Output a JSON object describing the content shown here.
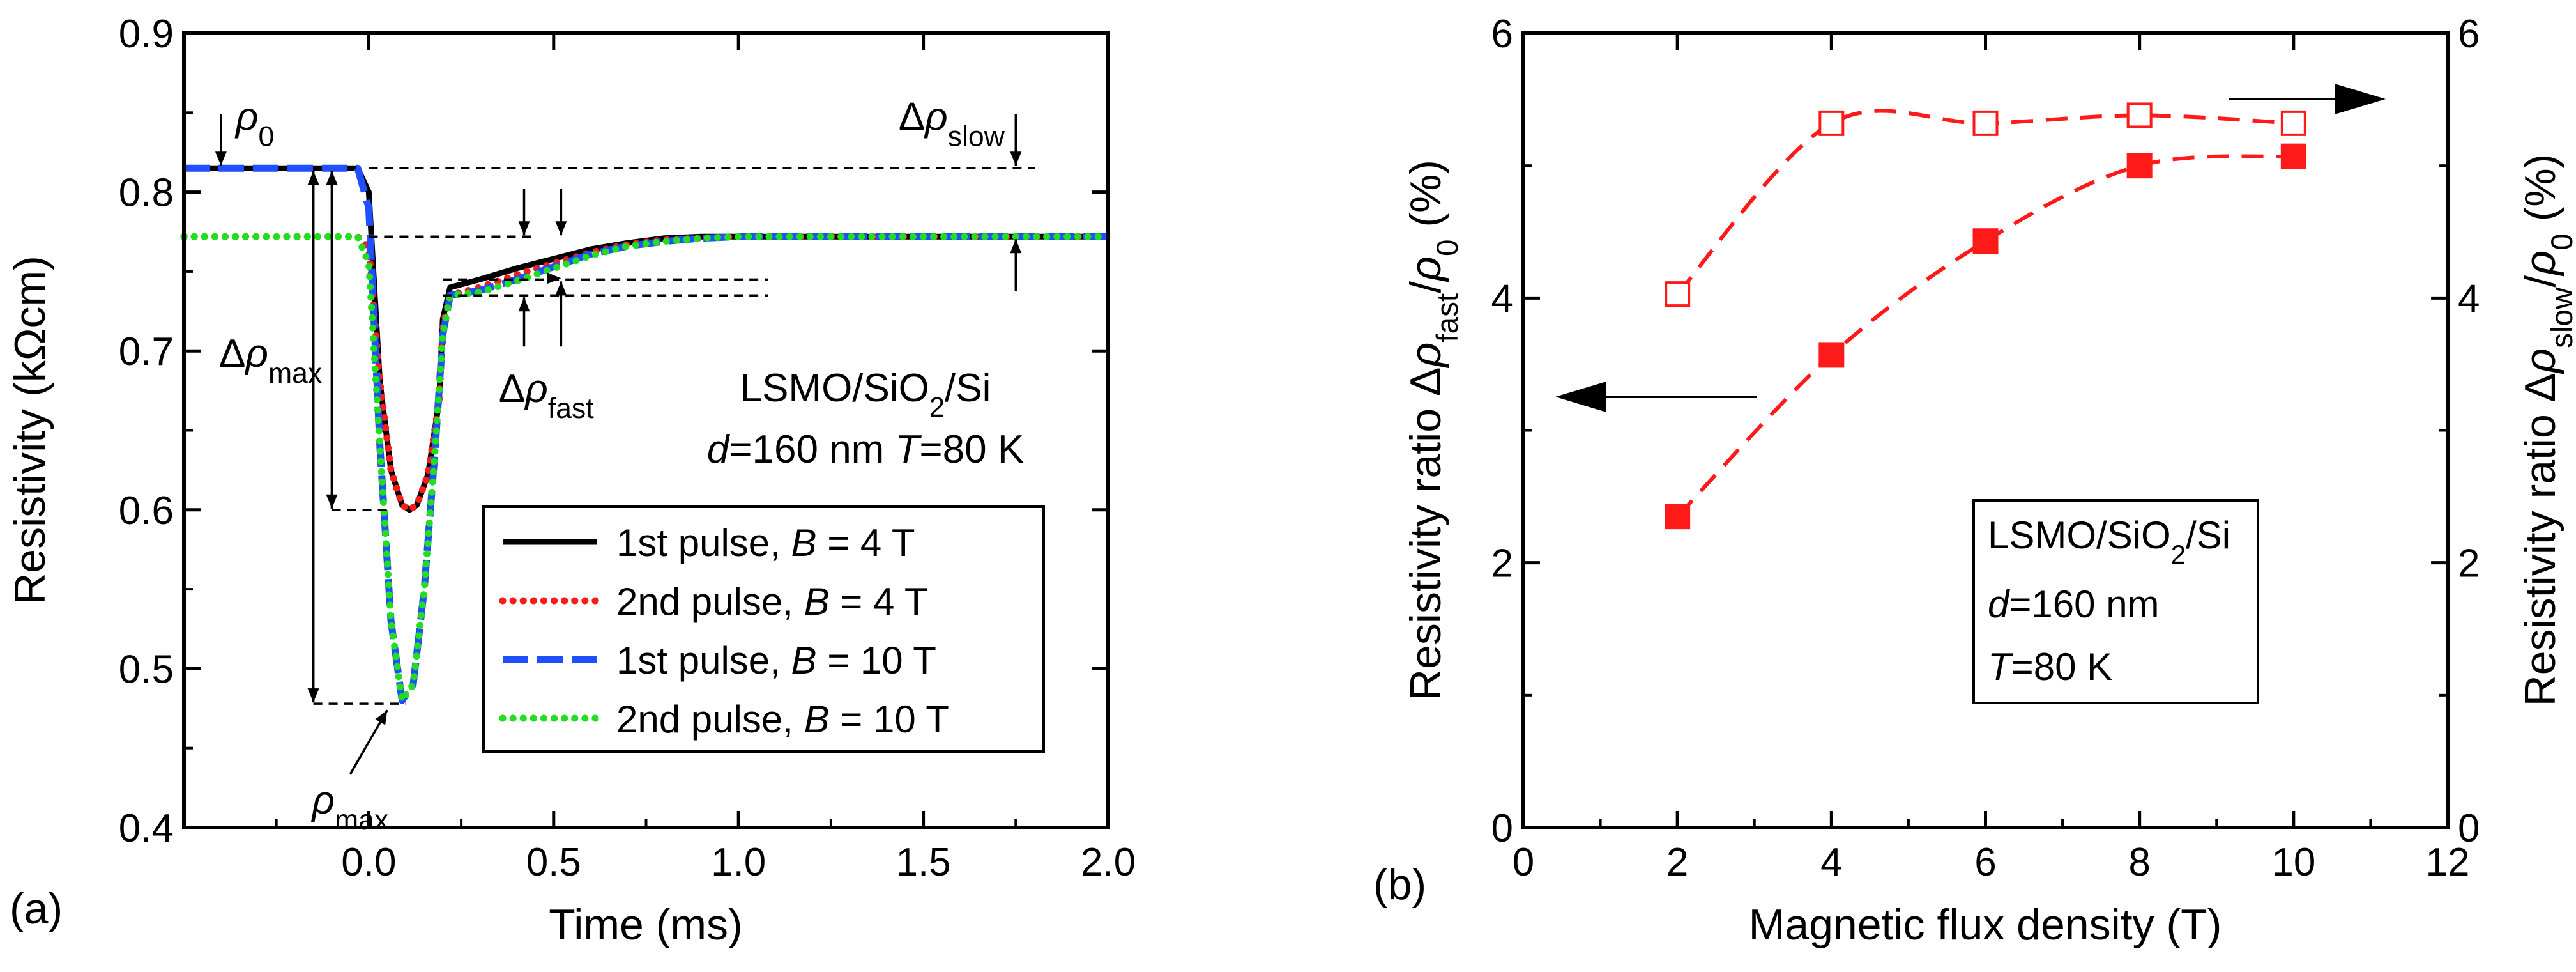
{
  "chart_data": [
    {
      "panel_label": "(a)",
      "type": "line",
      "xlabel": "Time (ms)",
      "ylabel": "Resistivity (kΩcm)",
      "xlim": [
        -0.5,
        2.0
      ],
      "ylim": [
        0.4,
        0.9
      ],
      "xticks": [
        0.0,
        0.5,
        1.0,
        1.5,
        2.0
      ],
      "xtick_labels": [
        "0.0",
        "0.5",
        "1.0",
        "1.5",
        "2.0"
      ],
      "yticks": [
        0.4,
        0.5,
        0.6,
        0.7,
        0.8,
        0.9
      ],
      "ytick_labels": [
        "0.4",
        "0.5",
        "0.6",
        "0.7",
        "0.8",
        "0.9"
      ],
      "grid": false,
      "legend_position": "lower-right",
      "sample_text": {
        "line1": "LSMO/SiO2/Si",
        "line2": "d=160 nm T=80 K"
      },
      "annotations": {
        "rho0": "ρ0",
        "d_rho_slow": "Δρslow",
        "d_rho_max": "Δρmax",
        "d_rho_fast": "Δρfast",
        "rho_max": "ρmax"
      },
      "series": [
        {
          "name": "1st pulse, B = 4 T",
          "color": "#000000",
          "style": "solid",
          "x": [
            -0.5,
            -0.03,
            0.0,
            0.03,
            0.06,
            0.09,
            0.11,
            0.13,
            0.16,
            0.19,
            0.2,
            0.22,
            0.3,
            0.4,
            0.5,
            0.6,
            0.7,
            0.8,
            0.9,
            1.0,
            1.5,
            2.0
          ],
          "y": [
            0.815,
            0.815,
            0.8,
            0.68,
            0.625,
            0.603,
            0.6,
            0.603,
            0.622,
            0.668,
            0.72,
            0.74,
            0.745,
            0.752,
            0.758,
            0.764,
            0.768,
            0.771,
            0.772,
            0.772,
            0.772,
            0.772
          ]
        },
        {
          "name": "2nd pulse, B = 4 T",
          "color": "#ff1a1a",
          "style": "dotted",
          "x": [
            -0.5,
            -0.03,
            0.0,
            0.03,
            0.06,
            0.09,
            0.11,
            0.13,
            0.16,
            0.19,
            0.2,
            0.22,
            0.3,
            0.4,
            0.5,
            0.6,
            0.7,
            0.8,
            0.9,
            1.0,
            1.5,
            2.0
          ],
          "y": [
            0.772,
            0.772,
            0.765,
            0.68,
            0.625,
            0.603,
            0.6,
            0.603,
            0.622,
            0.668,
            0.715,
            0.735,
            0.74,
            0.748,
            0.755,
            0.762,
            0.767,
            0.77,
            0.771,
            0.772,
            0.772,
            0.772
          ]
        },
        {
          "name": "1st pulse, B = 10 T",
          "color": "#1f4fff",
          "style": "dashed",
          "x": [
            -0.5,
            -0.03,
            0.0,
            0.03,
            0.06,
            0.09,
            0.12,
            0.15,
            0.18,
            0.2,
            0.22,
            0.3,
            0.4,
            0.5,
            0.6,
            0.7,
            0.8,
            0.9,
            1.0,
            1.5,
            2.0
          ],
          "y": [
            0.815,
            0.815,
            0.79,
            0.64,
            0.53,
            0.48,
            0.49,
            0.55,
            0.64,
            0.71,
            0.735,
            0.738,
            0.745,
            0.753,
            0.761,
            0.766,
            0.769,
            0.771,
            0.772,
            0.772,
            0.772
          ]
        },
        {
          "name": "2nd pulse, B = 10 T",
          "color": "#22dd22",
          "style": "dotted",
          "x": [
            -0.5,
            -0.03,
            0.0,
            0.03,
            0.06,
            0.09,
            0.12,
            0.15,
            0.18,
            0.2,
            0.22,
            0.3,
            0.4,
            0.5,
            0.6,
            0.7,
            0.8,
            0.9,
            1.0,
            1.5,
            2.0
          ],
          "y": [
            0.772,
            0.772,
            0.755,
            0.64,
            0.53,
            0.48,
            0.49,
            0.55,
            0.64,
            0.71,
            0.735,
            0.737,
            0.744,
            0.752,
            0.76,
            0.766,
            0.769,
            0.771,
            0.772,
            0.772,
            0.772
          ]
        }
      ]
    },
    {
      "panel_label": "(b)",
      "type": "scatter",
      "xlabel": "Magnetic flux density (T)",
      "ylabel_left": "Resistivity ratio Δρfast/ρ0 (%)",
      "ylabel_right": "Resistivity ratio Δρslow/ρ0 (%)",
      "xlim": [
        0,
        12
      ],
      "ylim": [
        0,
        6
      ],
      "xticks": [
        0,
        2,
        4,
        6,
        8,
        10,
        12
      ],
      "xtick_labels": [
        "0",
        "2",
        "4",
        "6",
        "8",
        "10",
        "12"
      ],
      "yticks": [
        0,
        2,
        4,
        6
      ],
      "ytick_labels": [
        "0",
        "2",
        "4",
        "6"
      ],
      "grid": false,
      "color": "#ff1a1a",
      "sample_text": {
        "line1": "LSMO/SiO2/Si",
        "line2": "d=160 nm",
        "line3": "T=80 K"
      },
      "series": [
        {
          "axis": "left",
          "marker": "filled-square",
          "x": [
            2,
            4,
            6,
            8,
            10
          ],
          "y": [
            2.35,
            3.57,
            4.43,
            5.0,
            5.07
          ]
        },
        {
          "axis": "right",
          "marker": "open-square",
          "x": [
            2,
            4,
            6,
            8,
            10
          ],
          "y": [
            4.03,
            5.32,
            5.32,
            5.38,
            5.32
          ]
        }
      ]
    }
  ]
}
